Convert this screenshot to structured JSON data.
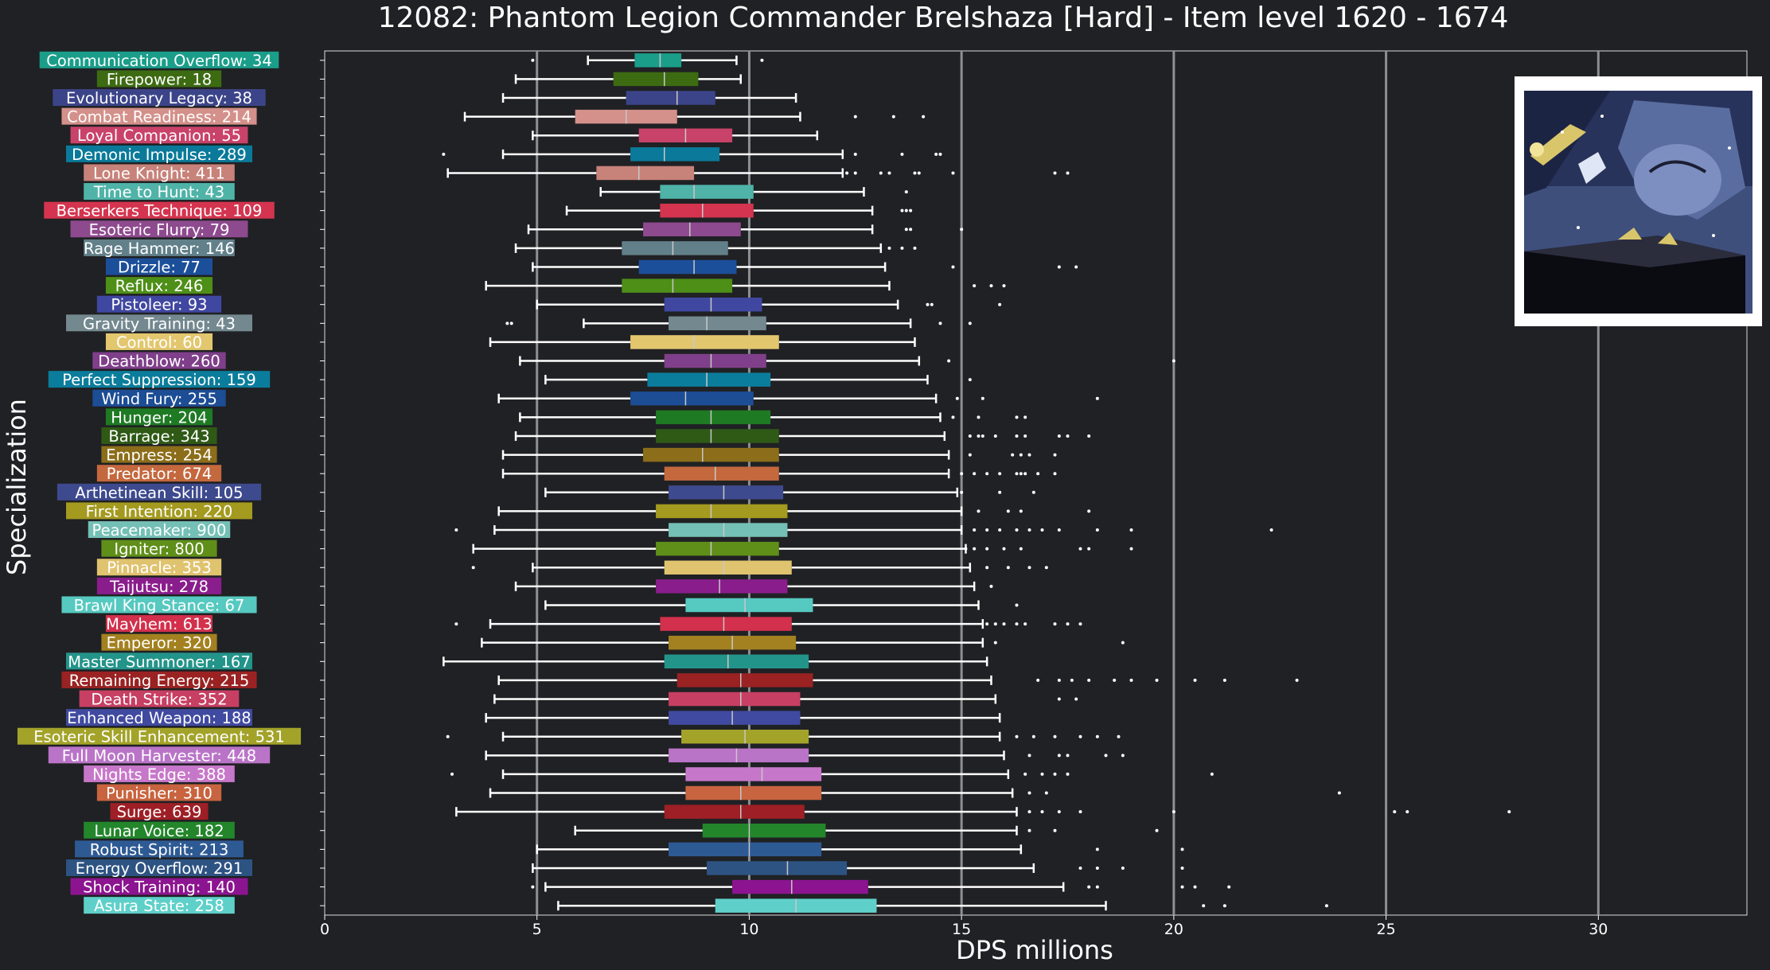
{
  "chart_data": {
    "type": "boxplot",
    "orientation": "horizontal",
    "title": "12082: Phantom Legion Commander Brelshaza [Hard] - Item level 1620 - 1674",
    "xlabel": "DPS millions",
    "ylabel": "Specialization",
    "xlim": [
      0,
      33.5
    ],
    "xticks": [
      0,
      5,
      10,
      15,
      20,
      25,
      30
    ],
    "vertical_reference_lines": [
      5,
      10,
      15,
      20,
      25,
      30
    ],
    "grid": false,
    "series": [
      {
        "label": "Communication Overflow: 34",
        "color": "#1a9e8a",
        "whisker_low": 6.2,
        "q1": 7.3,
        "median": 7.9,
        "q3": 8.4,
        "whisker_high": 9.7,
        "outliers": [
          4.9,
          10.3
        ]
      },
      {
        "label": "Firepower: 18",
        "color": "#3d6b12",
        "whisker_low": 4.5,
        "q1": 6.8,
        "median": 8.0,
        "q3": 8.8,
        "whisker_high": 9.8,
        "outliers": []
      },
      {
        "label": "Evolutionary Legacy: 38",
        "color": "#3c4489",
        "whisker_low": 4.2,
        "q1": 7.1,
        "median": 8.3,
        "q3": 9.2,
        "whisker_high": 11.1,
        "outliers": []
      },
      {
        "label": "Combat Readiness: 214",
        "color": "#d4908a",
        "whisker_low": 3.3,
        "q1": 5.9,
        "median": 7.1,
        "q3": 8.3,
        "whisker_high": 11.2,
        "outliers": [
          12.5,
          13.4,
          14.1
        ]
      },
      {
        "label": "Loyal Companion: 55",
        "color": "#c9426a",
        "whisker_low": 4.9,
        "q1": 7.4,
        "median": 8.5,
        "q3": 9.6,
        "whisker_high": 11.6,
        "outliers": []
      },
      {
        "label": "Demonic Impulse: 289",
        "color": "#0b7a9a",
        "whisker_low": 4.2,
        "q1": 7.2,
        "median": 8.0,
        "q3": 9.3,
        "whisker_high": 12.2,
        "outliers": [
          2.8,
          12.5,
          13.6,
          14.4,
          14.5
        ]
      },
      {
        "label": "Lone Knight: 411",
        "color": "#c7827a",
        "whisker_low": 2.9,
        "q1": 6.4,
        "median": 7.4,
        "q3": 8.7,
        "whisker_high": 12.2,
        "outliers": [
          12.3,
          12.5,
          13.1,
          13.3,
          13.9,
          14.0,
          14.8,
          17.2,
          17.5
        ]
      },
      {
        "label": "Time to Hunt: 43",
        "color": "#4fb3a8",
        "whisker_low": 6.5,
        "q1": 7.9,
        "median": 8.7,
        "q3": 10.1,
        "whisker_high": 12.7,
        "outliers": [
          13.7
        ]
      },
      {
        "label": "Berserkers Technique: 109",
        "color": "#d4344f",
        "whisker_low": 5.7,
        "q1": 7.9,
        "median": 8.9,
        "q3": 10.1,
        "whisker_high": 12.9,
        "outliers": [
          13.6,
          13.7,
          13.8
        ]
      },
      {
        "label": "Esoteric Flurry: 79",
        "color": "#8e4a8e",
        "whisker_low": 4.8,
        "q1": 7.5,
        "median": 8.6,
        "q3": 9.8,
        "whisker_high": 12.9,
        "outliers": [
          13.7,
          13.8,
          15.0
        ]
      },
      {
        "label": "Rage Hammer: 146",
        "color": "#62808a",
        "whisker_low": 4.5,
        "q1": 7.0,
        "median": 8.2,
        "q3": 9.5,
        "whisker_high": 13.1,
        "outliers": [
          13.3,
          13.6,
          13.9
        ]
      },
      {
        "label": "Drizzle: 77",
        "color": "#1c4f9a",
        "whisker_low": 4.9,
        "q1": 7.4,
        "median": 8.7,
        "q3": 9.7,
        "whisker_high": 13.2,
        "outliers": [
          14.8,
          17.3,
          17.7
        ]
      },
      {
        "label": "Reflux: 246",
        "color": "#4e8f18",
        "whisker_low": 3.8,
        "q1": 7.0,
        "median": 8.2,
        "q3": 9.6,
        "whisker_high": 13.3,
        "outliers": [
          15.3,
          15.7,
          16.0
        ]
      },
      {
        "label": "Pistoleer: 93",
        "color": "#4047a0",
        "whisker_low": 5.0,
        "q1": 8.0,
        "median": 9.1,
        "q3": 10.3,
        "whisker_high": 13.5,
        "outliers": [
          14.2,
          14.3,
          15.9
        ]
      },
      {
        "label": "Gravity Training: 43",
        "color": "#73888f",
        "whisker_low": 6.1,
        "q1": 8.1,
        "median": 9.0,
        "q3": 10.4,
        "whisker_high": 13.8,
        "outliers": [
          4.3,
          4.4,
          14.5,
          15.2
        ]
      },
      {
        "label": "Control: 60",
        "color": "#e3c76f",
        "whisker_low": 3.9,
        "q1": 7.2,
        "median": 8.7,
        "q3": 10.7,
        "whisker_high": 13.9,
        "outliers": []
      },
      {
        "label": "Deathblow: 260",
        "color": "#7f3f8a",
        "whisker_low": 4.6,
        "q1": 8.0,
        "median": 9.1,
        "q3": 10.4,
        "whisker_high": 14.0,
        "outliers": [
          14.7,
          20.0
        ]
      },
      {
        "label": "Perfect Suppression: 159",
        "color": "#0b7d9c",
        "whisker_low": 5.2,
        "q1": 7.6,
        "median": 9.0,
        "q3": 10.5,
        "whisker_high": 14.2,
        "outliers": [
          15.2
        ]
      },
      {
        "label": "Wind Fury: 255",
        "color": "#1c4d95",
        "whisker_low": 4.1,
        "q1": 7.2,
        "median": 8.5,
        "q3": 10.1,
        "whisker_high": 14.4,
        "outliers": [
          14.9,
          15.5,
          18.2
        ]
      },
      {
        "label": "Hunger: 204",
        "color": "#1f7a24",
        "whisker_low": 4.6,
        "q1": 7.8,
        "median": 9.1,
        "q3": 10.5,
        "whisker_high": 14.5,
        "outliers": [
          14.8,
          15.4,
          16.3,
          16.5
        ]
      },
      {
        "label": "Barrage: 343",
        "color": "#2f5a16",
        "whisker_low": 4.5,
        "q1": 7.8,
        "median": 9.1,
        "q3": 10.7,
        "whisker_high": 14.6,
        "outliers": [
          15.2,
          15.4,
          15.5,
          15.8,
          16.3,
          16.5,
          17.3,
          17.5,
          18.0
        ]
      },
      {
        "label": "Empress: 254",
        "color": "#8c6e1a",
        "whisker_low": 4.2,
        "q1": 7.5,
        "median": 8.9,
        "q3": 10.7,
        "whisker_high": 14.7,
        "outliers": [
          15.2,
          16.2,
          16.4,
          16.6,
          17.2
        ]
      },
      {
        "label": "Predator: 674",
        "color": "#c4683e",
        "whisker_low": 4.2,
        "q1": 8.0,
        "median": 9.2,
        "q3": 10.7,
        "whisker_high": 14.7,
        "outliers": [
          15.0,
          15.3,
          15.6,
          15.9,
          16.3,
          16.4,
          16.5,
          16.8,
          17.2
        ]
      },
      {
        "label": "Arthetinean Skill: 105",
        "color": "#3e4a8e",
        "whisker_low": 5.2,
        "q1": 8.1,
        "median": 9.4,
        "q3": 10.8,
        "whisker_high": 14.9,
        "outliers": [
          15.0,
          15.9,
          16.7
        ]
      },
      {
        "label": "First Intention: 220",
        "color": "#a39a1f",
        "whisker_low": 4.1,
        "q1": 7.8,
        "median": 9.1,
        "q3": 10.9,
        "whisker_high": 15.0,
        "outliers": [
          15.4,
          16.1,
          16.4,
          18.0
        ]
      },
      {
        "label": "Peacemaker: 900",
        "color": "#74c0b6",
        "whisker_low": 4.0,
        "q1": 8.1,
        "median": 9.4,
        "q3": 10.9,
        "whisker_high": 15.0,
        "outliers": [
          3.1,
          15.3,
          15.6,
          15.9,
          16.3,
          16.6,
          16.9,
          17.3,
          18.2,
          19.0,
          22.3
        ]
      },
      {
        "label": "Igniter: 800",
        "color": "#5f8f19",
        "whisker_low": 3.5,
        "q1": 7.8,
        "median": 9.1,
        "q3": 10.7,
        "whisker_high": 15.1,
        "outliers": [
          15.1,
          15.3,
          15.6,
          16.0,
          16.4,
          17.8,
          18.0,
          19.0
        ]
      },
      {
        "label": "Pinnacle: 353",
        "color": "#e0c36f",
        "whisker_low": 4.9,
        "q1": 8.0,
        "median": 9.4,
        "q3": 11.0,
        "whisker_high": 15.2,
        "outliers": [
          3.5,
          15.6,
          16.1,
          16.6,
          17.0
        ]
      },
      {
        "label": "Taijutsu: 278",
        "color": "#8a1d8c",
        "whisker_low": 4.5,
        "q1": 7.8,
        "median": 9.3,
        "q3": 10.9,
        "whisker_high": 15.3,
        "outliers": [
          15.7
        ]
      },
      {
        "label": "Brawl King Stance: 67",
        "color": "#56c9c0",
        "whisker_low": 5.2,
        "q1": 8.5,
        "median": 9.9,
        "q3": 11.5,
        "whisker_high": 15.4,
        "outliers": [
          16.3
        ]
      },
      {
        "label": "Mayhem: 613",
        "color": "#d2304c",
        "whisker_low": 3.9,
        "q1": 7.9,
        "median": 9.4,
        "q3": 11.0,
        "whisker_high": 15.5,
        "outliers": [
          3.1,
          15.6,
          15.8,
          16.0,
          16.3,
          16.5,
          17.2,
          17.5,
          17.8
        ]
      },
      {
        "label": "Emperor: 320",
        "color": "#a38120",
        "whisker_low": 3.7,
        "q1": 8.1,
        "median": 9.6,
        "q3": 11.1,
        "whisker_high": 15.5,
        "outliers": [
          15.8,
          18.8
        ]
      },
      {
        "label": "Master Summoner: 167",
        "color": "#23948a",
        "whisker_low": 2.8,
        "q1": 8.0,
        "median": 9.5,
        "q3": 11.4,
        "whisker_high": 15.6,
        "outliers": []
      },
      {
        "label": "Remaining Energy: 215",
        "color": "#9a2222",
        "whisker_low": 4.1,
        "q1": 8.3,
        "median": 9.8,
        "q3": 11.5,
        "whisker_high": 15.7,
        "outliers": [
          16.8,
          17.3,
          17.6,
          18.0,
          18.6,
          19.0,
          19.6,
          20.5,
          21.2,
          22.9
        ]
      },
      {
        "label": "Death Strike: 352",
        "color": "#c73f63",
        "whisker_low": 4.0,
        "q1": 8.1,
        "median": 9.8,
        "q3": 11.2,
        "whisker_high": 15.8,
        "outliers": [
          17.3,
          17.7
        ]
      },
      {
        "label": "Enhanced Weapon: 188",
        "color": "#404aa0",
        "whisker_low": 3.8,
        "q1": 8.1,
        "median": 9.6,
        "q3": 11.2,
        "whisker_high": 15.9,
        "outliers": []
      },
      {
        "label": "Esoteric Skill Enhancement: 531",
        "color": "#a3a32a",
        "whisker_low": 4.2,
        "q1": 8.4,
        "median": 9.9,
        "q3": 11.4,
        "whisker_high": 15.9,
        "outliers": [
          2.9,
          16.3,
          16.7,
          17.2,
          17.8,
          18.2,
          18.7
        ]
      },
      {
        "label": "Full Moon Harvester: 448",
        "color": "#b974c7",
        "whisker_low": 3.8,
        "q1": 8.1,
        "median": 9.7,
        "q3": 11.4,
        "whisker_high": 16.0,
        "outliers": [
          16.6,
          17.3,
          17.5,
          18.4,
          18.8
        ]
      },
      {
        "label": "Nights Edge: 388",
        "color": "#c777c9",
        "whisker_low": 4.2,
        "q1": 8.5,
        "median": 10.3,
        "q3": 11.7,
        "whisker_high": 16.1,
        "outliers": [
          3.0,
          16.5,
          16.9,
          17.2,
          17.5,
          20.9
        ]
      },
      {
        "label": "Punisher: 310",
        "color": "#c8643f",
        "whisker_low": 3.9,
        "q1": 8.5,
        "median": 9.8,
        "q3": 11.7,
        "whisker_high": 16.2,
        "outliers": [
          16.6,
          17.0,
          23.9
        ]
      },
      {
        "label": "Surge: 639",
        "color": "#9e1f25",
        "whisker_low": 3.1,
        "q1": 8.0,
        "median": 9.8,
        "q3": 11.3,
        "whisker_high": 16.3,
        "outliers": [
          16.6,
          16.9,
          17.3,
          17.8,
          20.0,
          25.2,
          25.5,
          27.9
        ]
      },
      {
        "label": "Lunar Voice: 182",
        "color": "#23862b",
        "whisker_low": 5.9,
        "q1": 8.9,
        "median": 10.0,
        "q3": 11.8,
        "whisker_high": 16.3,
        "outliers": [
          16.6,
          17.2,
          19.6
        ]
      },
      {
        "label": "Robust Spirit: 213",
        "color": "#2e5a94",
        "whisker_low": 5.0,
        "q1": 8.1,
        "median": 10.0,
        "q3": 11.7,
        "whisker_high": 16.4,
        "outliers": [
          18.2,
          20.2
        ]
      },
      {
        "label": "Energy Overflow: 291",
        "color": "#2d5382",
        "whisker_low": 4.9,
        "q1": 9.0,
        "median": 10.9,
        "q3": 12.3,
        "whisker_high": 16.7,
        "outliers": [
          17.8,
          18.2,
          18.8,
          20.2
        ]
      },
      {
        "label": "Shock Training: 140",
        "color": "#8c1490",
        "whisker_low": 5.2,
        "q1": 9.6,
        "median": 11.0,
        "q3": 12.8,
        "whisker_high": 17.4,
        "outliers": [
          4.9,
          18.0,
          18.2,
          20.2,
          20.5,
          21.3
        ]
      },
      {
        "label": "Asura State: 258",
        "color": "#5fd0c9",
        "whisker_low": 5.5,
        "q1": 9.2,
        "median": 11.1,
        "q3": 13.0,
        "whisker_high": 18.4,
        "outliers": [
          20.7,
          21.2,
          23.6
        ]
      }
    ]
  },
  "style": {
    "background": "#202124",
    "text_color": "#ffffff",
    "whisker_color": "#ffffff",
    "reference_line_color": "#8d8f91",
    "median_color": "#c8c8c8"
  },
  "portrait": {
    "icon": "brelshaza-boss-portrait"
  }
}
